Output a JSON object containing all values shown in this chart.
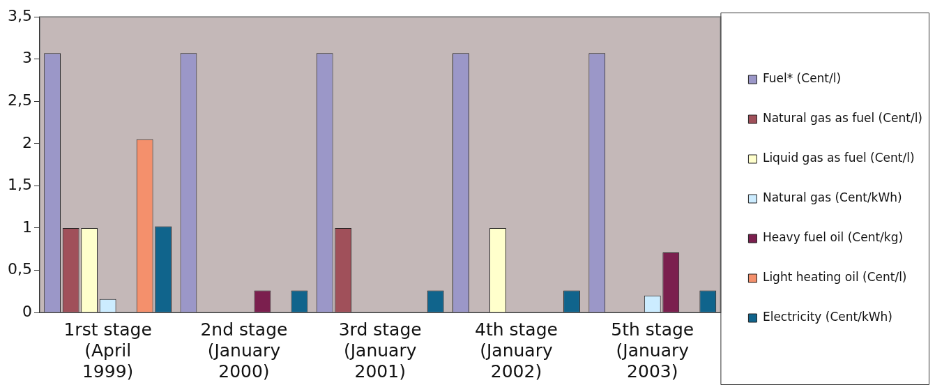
{
  "chart_data": {
    "type": "bar",
    "categories": [
      "1rst stage (April 1999)",
      "2nd stage (January 2000)",
      "3rd stage (January 2001)",
      "4th stage (January 2002)",
      "5th stage (January 2003)"
    ],
    "series": [
      {
        "name": "Fuel* (Cent/l)",
        "color": "#9b97c8",
        "values": [
          3.07,
          3.07,
          3.07,
          3.07,
          3.07
        ]
      },
      {
        "name": "Natural gas as fuel (Cent/l)",
        "color": "#a0505a",
        "values": [
          1.0,
          null,
          1.0,
          null,
          null
        ]
      },
      {
        "name": "Liquid gas as fuel (Cent/l)",
        "color": "#ffffcc",
        "values": [
          1.0,
          null,
          null,
          1.0,
          null
        ]
      },
      {
        "name": "Natural gas (Cent/kWh)",
        "color": "#ccecff",
        "values": [
          0.16,
          null,
          null,
          null,
          0.2
        ]
      },
      {
        "name": "Heavy fuel oil (Cent/kg)",
        "color": "#7b1f4e",
        "values": [
          null,
          0.26,
          null,
          null,
          0.71
        ]
      },
      {
        "name": "Light heating oil (Cent/l)",
        "color": "#f4906c",
        "values": [
          2.05,
          null,
          null,
          null,
          null
        ]
      },
      {
        "name": "Electricity (Cent/kWh)",
        "color": "#10648c",
        "values": [
          1.02,
          0.26,
          0.26,
          0.26,
          0.26
        ]
      }
    ],
    "ylim": [
      0,
      3.5
    ],
    "yticks": [
      0,
      {
        "value": 0.5,
        "label": "0,5"
      },
      1,
      {
        "value": 1.5,
        "label": "1,5"
      },
      2,
      {
        "value": 2.5,
        "label": "2,5"
      },
      3,
      {
        "value": 3.5,
        "label": "3,5"
      }
    ],
    "grid": false,
    "legend": "right"
  }
}
